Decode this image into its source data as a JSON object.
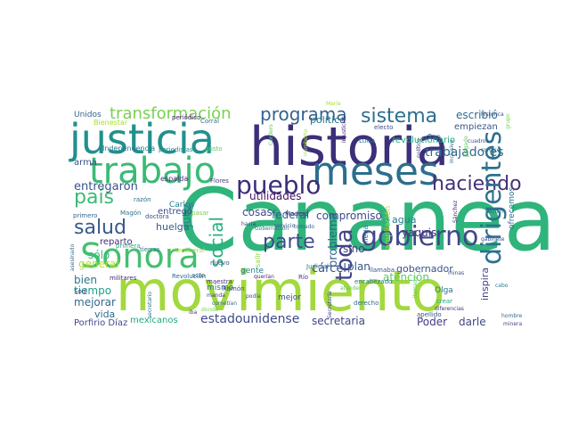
{
  "wordcloud": {
    "words": [
      {
        "text": "Cananea",
        "color": "#2fb47c"
      },
      {
        "text": "movimiento",
        "color": "#a2d93d"
      },
      {
        "text": "historia",
        "color": "#3b2f7a"
      },
      {
        "text": "justicia",
        "color": "#21908d"
      },
      {
        "text": "trabajo",
        "color": "#3aba76"
      },
      {
        "text": "meses",
        "color": "#2c6e8e"
      },
      {
        "text": "Sonora",
        "color": "#44bf70"
      },
      {
        "text": "gobierno",
        "color": "#3f4889"
      },
      {
        "text": "haciendo",
        "color": "#45307a"
      },
      {
        "text": "dirigentes",
        "color": "#2d708e"
      },
      {
        "text": "pueblo",
        "color": "#3b2d7a"
      },
      {
        "text": "programa",
        "color": "#33628d"
      },
      {
        "text": "sistema",
        "color": "#2d6f8e"
      },
      {
        "text": "transformación",
        "color": "#7ad151"
      },
      {
        "text": "país",
        "color": "#3cbb75"
      },
      {
        "text": "parte",
        "color": "#3e4a89"
      },
      {
        "text": "social",
        "color": "#29af7f"
      },
      {
        "text": "salud",
        "color": "#38588c"
      },
      {
        "text": "toda",
        "color": "#414487"
      },
      {
        "text": "trabajadores",
        "color": "#30698e"
      },
      {
        "text": "entregaron",
        "color": "#3b528b"
      },
      {
        "text": "estadounidense",
        "color": "#3e4a89"
      },
      {
        "text": "secretaria",
        "color": "#404688"
      },
      {
        "text": "escribió",
        "color": "#2e6b8e"
      },
      {
        "text": "política",
        "color": "#2a778e"
      },
      {
        "text": "empiezan",
        "color": "#38588c"
      },
      {
        "text": "revolucionario",
        "color": "#22a884"
      },
      {
        "text": "utilidades",
        "color": "#471365"
      },
      {
        "text": "compromiso",
        "color": "#3e4989"
      },
      {
        "text": "agua",
        "color": "#287c8e"
      },
      {
        "text": "cárcel",
        "color": "#3b528b"
      },
      {
        "text": "federal",
        "color": "#355f8d"
      },
      {
        "text": "cosas",
        "color": "#3d4d8a"
      },
      {
        "text": "problema",
        "color": "#31688e"
      },
      {
        "text": "sino",
        "color": "#433e85"
      },
      {
        "text": "llega",
        "color": "#2e6e8e"
      },
      {
        "text": "plan",
        "color": "#3a548c"
      },
      {
        "text": "yaquis",
        "color": "#46337f"
      },
      {
        "text": "atención",
        "color": "#5ec962"
      },
      {
        "text": "gobernador",
        "color": "#3c508b"
      },
      {
        "text": "inspira",
        "color": "#404588"
      },
      {
        "text": "ofrecemos",
        "color": "#2c738e"
      },
      {
        "text": "Poder",
        "color": "#443983"
      },
      {
        "text": "darle",
        "color": "#3f4788"
      },
      {
        "text": "ampliación",
        "color": "#a5db36"
      },
      {
        "text": "huelga",
        "color": "#38598c"
      },
      {
        "text": "juez",
        "color": "#25858e"
      },
      {
        "text": "sólo",
        "color": "#35b779"
      },
      {
        "text": "general",
        "color": "#b5de2b"
      },
      {
        "text": "Carlos",
        "color": "#287d8e"
      },
      {
        "text": "reparto",
        "color": "#472c7a"
      },
      {
        "text": "entregó",
        "color": "#3e4a89"
      },
      {
        "text": "bien",
        "color": "#2b748e"
      },
      {
        "text": "tiempo",
        "color": "#1f9e89"
      },
      {
        "text": "mejorar",
        "color": "#31688e"
      },
      {
        "text": "vida",
        "color": "#2f6c8e"
      },
      {
        "text": "mexicanos",
        "color": "#22a884"
      },
      {
        "text": "Porfirio Díaz",
        "color": "#3e4a89"
      },
      {
        "text": "gente",
        "color": "#26828e"
      },
      {
        "text": "mismo",
        "color": "#2d708e"
      },
      {
        "text": "mejor",
        "color": "#3a548c"
      },
      {
        "text": "salir",
        "color": "#90d743"
      },
      {
        "text": "Unidos",
        "color": "#33638d"
      },
      {
        "text": "arma",
        "color": "#3b528b"
      },
      {
        "text": "Independencia",
        "color": "#2a788e"
      },
      {
        "text": "periódico",
        "color": "#481a6c"
      },
      {
        "text": "Bienestar",
        "color": "#aadc32"
      },
      {
        "text": "Corral",
        "color": "#2c728e"
      },
      {
        "text": "periodistas",
        "color": "#238a8d"
      },
      {
        "text": "gusto",
        "color": "#5ec962"
      },
      {
        "text": "espalda",
        "color": "#472d7b"
      },
      {
        "text": "Flores",
        "color": "#453882"
      },
      {
        "text": "razón",
        "color": "#2e6e8e"
      },
      {
        "text": "Magón",
        "color": "#2a788e"
      },
      {
        "text": "doctora",
        "color": "#3b528b"
      },
      {
        "text": "primero",
        "color": "#31688e"
      },
      {
        "text": "pasar",
        "color": "#7ad151"
      },
      {
        "text": "hacia",
        "color": "#404588"
      },
      {
        "text": "servicio",
        "color": "#3a548c"
      },
      {
        "text": "Madero",
        "color": "#443983"
      },
      {
        "text": "Gobernación",
        "color": "#2a788e"
      },
      {
        "text": "tomado",
        "color": "#32658e"
      },
      {
        "text": "militares",
        "color": "#482576"
      },
      {
        "text": "Revolución",
        "color": "#2f6c8e"
      },
      {
        "text": "tierras",
        "color": "#2c728e"
      },
      {
        "text": "neoliberal",
        "color": "#aadc32"
      },
      {
        "text": "primera",
        "color": "#22a884"
      },
      {
        "text": "asesinado",
        "color": "#31688e"
      },
      {
        "text": "Sodi",
        "color": "#3e4a89"
      },
      {
        "text": "nuevo",
        "color": "#3b528b"
      },
      {
        "text": "maestra",
        "color": "#453882"
      },
      {
        "text": "acto",
        "color": "#2e6e8e"
      },
      {
        "text": "Ramón",
        "color": "#3e4a89"
      },
      {
        "text": "Río",
        "color": "#443983"
      },
      {
        "text": "Judicial",
        "color": "#2a788e"
      },
      {
        "text": "querían",
        "color": "#482576"
      },
      {
        "text": "cometían",
        "color": "#31688e"
      },
      {
        "text": "podía",
        "color": "#3b528b"
      },
      {
        "text": "manda",
        "color": "#404588"
      },
      {
        "text": "donde",
        "color": "#7ad151"
      },
      {
        "text": "iba",
        "color": "#453882"
      },
      {
        "text": "secretario",
        "color": "#2c728e"
      },
      {
        "text": "Secretaría",
        "color": "#3e4a89"
      },
      {
        "text": "derecho",
        "color": "#2f6c8e"
      },
      {
        "text": "encabezado",
        "color": "#2a788e"
      },
      {
        "text": "atender",
        "color": "#5ec962"
      },
      {
        "text": "llamaba",
        "color": "#3a548c"
      },
      {
        "text": "minas",
        "color": "#3e4a89"
      },
      {
        "text": "Olga",
        "color": "#2c728e"
      },
      {
        "text": "llamado",
        "color": "#5ec962"
      },
      {
        "text": "crear",
        "color": "#22a884"
      },
      {
        "text": "apellido",
        "color": "#3b528b"
      },
      {
        "text": "diferencias",
        "color": "#472d7b"
      },
      {
        "text": "hombre",
        "color": "#31688e"
      },
      {
        "text": "minera",
        "color": "#404588"
      },
      {
        "text": "cabo",
        "color": "#2a788e"
      },
      {
        "text": "gabinete",
        "color": "#3b528b"
      },
      {
        "text": "Sánchez",
        "color": "#482576"
      },
      {
        "text": "nación",
        "color": "#2c728e"
      },
      {
        "text": "histórica",
        "color": "#3e4a89"
      },
      {
        "text": "cuadros",
        "color": "#3b528b"
      },
      {
        "text": "conoce",
        "color": "#2a788e"
      },
      {
        "text": "juzgado",
        "color": "#5ec962"
      },
      {
        "text": "inclusive",
        "color": "#2f6c8e"
      },
      {
        "text": "San",
        "color": "#31688e"
      },
      {
        "text": "Luisa",
        "color": "#2a788e"
      },
      {
        "text": "María",
        "color": "#aadc32"
      },
      {
        "text": "electo",
        "color": "#3e4a89"
      },
      {
        "text": "injusticias",
        "color": "#482576"
      },
      {
        "text": "Cordero",
        "color": "#5ec962"
      },
      {
        "text": "Humberto",
        "color": "#aadc32"
      },
      {
        "text": "político",
        "color": "#404588"
      },
      {
        "text": "grupo",
        "color": "#7ad151"
      }
    ]
  }
}
